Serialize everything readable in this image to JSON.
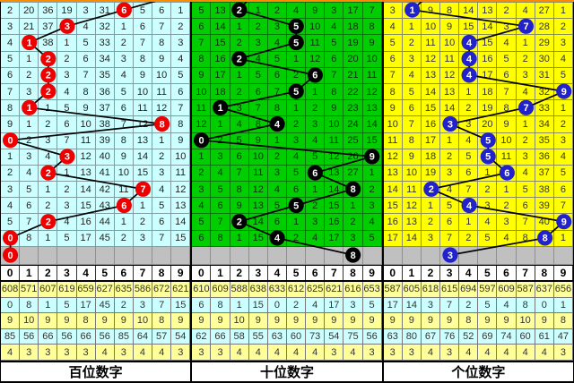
{
  "top_strip_color": "#FF8C00",
  "gray_row_bg": "#C0C0C0",
  "chart_data": {
    "type": "table",
    "panels": [
      {
        "title": "百位数字",
        "drawn_digit_trend": [
          6,
          3,
          1,
          2,
          2,
          2,
          1,
          8,
          0,
          3,
          2,
          7,
          6,
          2,
          0,
          0
        ]
      },
      {
        "title": "十位数字",
        "drawn_digit_trend": [
          2,
          5,
          5,
          2,
          6,
          5,
          1,
          4,
          0,
          9,
          6,
          8,
          5,
          2,
          4,
          8
        ]
      },
      {
        "title": "个位数字",
        "drawn_digit_trend": [
          1,
          7,
          4,
          4,
          4,
          9,
          7,
          3,
          5,
          5,
          6,
          2,
          4,
          9,
          8,
          3
        ]
      }
    ]
  },
  "panels": [
    {
      "id": "hundreds",
      "label": "百位数字",
      "colors": {
        "cell_bg": "#CCFFFF",
        "cell_border": "#7f9da3",
        "cell_text": "#222222",
        "circle_fill": "#EE0000",
        "circle_text": "#FFFFFF"
      },
      "grid": [
        [
          "2",
          "20",
          "36",
          "19",
          "3",
          "31",
          "6",
          "5",
          "6",
          "1"
        ],
        [
          "3",
          "21",
          "37",
          "3",
          "4",
          "32",
          "1",
          "6",
          "7",
          "2"
        ],
        [
          "4",
          "1",
          "38",
          "1",
          "5",
          "33",
          "2",
          "7",
          "8",
          "3"
        ],
        [
          "5",
          "1",
          "2",
          "2",
          "6",
          "34",
          "3",
          "8",
          "9",
          "4"
        ],
        [
          "6",
          "2",
          "2",
          "3",
          "7",
          "35",
          "4",
          "9",
          "10",
          "5"
        ],
        [
          "7",
          "3",
          "2",
          "4",
          "8",
          "36",
          "5",
          "10",
          "11",
          "6"
        ],
        [
          "8",
          "1",
          "1",
          "5",
          "9",
          "37",
          "6",
          "11",
          "12",
          "7"
        ],
        [
          "9",
          "1",
          "2",
          "6",
          "10",
          "38",
          "7",
          "12",
          "8",
          "8"
        ],
        [
          "0",
          "2",
          "3",
          "7",
          "11",
          "39",
          "8",
          "13",
          "1",
          "9"
        ],
        [
          "1",
          "3",
          "4",
          "3",
          "12",
          "40",
          "9",
          "14",
          "2",
          "10"
        ],
        [
          "2",
          "4",
          "2",
          "1",
          "13",
          "41",
          "10",
          "15",
          "3",
          "11"
        ],
        [
          "3",
          "5",
          "1",
          "2",
          "14",
          "42",
          "11",
          "7",
          "4",
          "12"
        ],
        [
          "4",
          "6",
          "2",
          "3",
          "15",
          "43",
          "6",
          "1",
          "5",
          "13"
        ],
        [
          "5",
          "7",
          "2",
          "4",
          "16",
          "44",
          "1",
          "2",
          "6",
          "14"
        ],
        [
          "0",
          "8",
          "1",
          "5",
          "17",
          "45",
          "2",
          "3",
          "7",
          "15"
        ]
      ],
      "circle_cols": [
        6,
        3,
        1,
        2,
        2,
        2,
        1,
        8,
        0,
        3,
        2,
        7,
        6,
        2,
        0
      ],
      "tail_circle_col": 0,
      "entry_col": 9.4,
      "stats_header": [
        "0",
        "1",
        "2",
        "3",
        "4",
        "5",
        "6",
        "7",
        "8",
        "9"
      ],
      "stats_rows": [
        {
          "bg": "#FFFF99",
          "values": [
            "608",
            "571",
            "607",
            "619",
            "659",
            "627",
            "635",
            "586",
            "672",
            "621"
          ]
        },
        {
          "bg": "#CCFFFF",
          "values": [
            "0",
            "8",
            "1",
            "5",
            "17",
            "45",
            "2",
            "3",
            "7",
            "15"
          ]
        },
        {
          "bg": "#FFFF99",
          "values": [
            "9",
            "10",
            "9",
            "9",
            "8",
            "9",
            "9",
            "10",
            "8",
            "9"
          ]
        },
        {
          "bg": "#CCFFFF",
          "values": [
            "85",
            "56",
            "66",
            "56",
            "66",
            "56",
            "85",
            "64",
            "57",
            "54"
          ]
        },
        {
          "bg": "#FFFF99",
          "values": [
            "4",
            "3",
            "3",
            "3",
            "3",
            "4",
            "3",
            "4",
            "4",
            "3"
          ]
        }
      ]
    },
    {
      "id": "tens",
      "label": "十位数字",
      "colors": {
        "cell_bg": "#00CE00",
        "cell_border": "#007700",
        "cell_text": "#003300",
        "circle_fill": "#000000",
        "circle_text": "#FFFFFF"
      },
      "grid": [
        [
          "5",
          "13",
          "2",
          "1",
          "2",
          "4",
          "9",
          "3",
          "17",
          "7"
        ],
        [
          "6",
          "14",
          "1",
          "2",
          "3",
          "5",
          "10",
          "4",
          "18",
          "8"
        ],
        [
          "7",
          "15",
          "2",
          "3",
          "4",
          "5",
          "11",
          "5",
          "19",
          "9"
        ],
        [
          "8",
          "16",
          "2",
          "4",
          "5",
          "1",
          "12",
          "6",
          "20",
          "10"
        ],
        [
          "9",
          "17",
          "1",
          "5",
          "6",
          "2",
          "6",
          "7",
          "21",
          "11"
        ],
        [
          "10",
          "18",
          "2",
          "6",
          "7",
          "5",
          "1",
          "8",
          "22",
          "12"
        ],
        [
          "11",
          "1",
          "3",
          "7",
          "8",
          "1",
          "2",
          "9",
          "23",
          "13"
        ],
        [
          "12",
          "1",
          "4",
          "8",
          "4",
          "2",
          "3",
          "10",
          "24",
          "14"
        ],
        [
          "0",
          "2",
          "5",
          "9",
          "1",
          "3",
          "4",
          "11",
          "25",
          "15"
        ],
        [
          "1",
          "3",
          "6",
          "10",
          "2",
          "4",
          "5",
          "12",
          "26",
          "9"
        ],
        [
          "2",
          "4",
          "7",
          "11",
          "3",
          "5",
          "6",
          "13",
          "27",
          "1"
        ],
        [
          "3",
          "5",
          "8",
          "12",
          "4",
          "6",
          "1",
          "14",
          "8",
          "2"
        ],
        [
          "4",
          "6",
          "9",
          "13",
          "5",
          "5",
          "2",
          "15",
          "1",
          "3"
        ],
        [
          "5",
          "7",
          "2",
          "14",
          "6",
          "1",
          "3",
          "16",
          "2",
          "4"
        ],
        [
          "6",
          "8",
          "1",
          "15",
          "4",
          "2",
          "4",
          "17",
          "3",
          "5"
        ]
      ],
      "circle_cols": [
        2,
        5,
        5,
        2,
        6,
        5,
        1,
        4,
        0,
        9,
        6,
        8,
        5,
        2,
        4
      ],
      "tail_circle_col": 8,
      "entry_col": 3.2,
      "stats_header": [
        "0",
        "1",
        "2",
        "3",
        "4",
        "5",
        "6",
        "7",
        "8",
        "9"
      ],
      "stats_rows": [
        {
          "bg": "#FFFF99",
          "values": [
            "610",
            "609",
            "588",
            "638",
            "633",
            "612",
            "625",
            "621",
            "616",
            "653"
          ]
        },
        {
          "bg": "#CCFFFF",
          "values": [
            "6",
            "8",
            "1",
            "15",
            "0",
            "2",
            "4",
            "17",
            "3",
            "5"
          ]
        },
        {
          "bg": "#FFFF99",
          "values": [
            "9",
            "9",
            "10",
            "9",
            "9",
            "9",
            "9",
            "9",
            "9",
            "9"
          ]
        },
        {
          "bg": "#CCFFFF",
          "values": [
            "62",
            "66",
            "58",
            "55",
            "63",
            "60",
            "73",
            "54",
            "75",
            "56"
          ]
        },
        {
          "bg": "#FFFF99",
          "values": [
            "3",
            "3",
            "4",
            "4",
            "4",
            "4",
            "4",
            "3",
            "4",
            "3"
          ]
        }
      ]
    },
    {
      "id": "units",
      "label": "个位数字",
      "colors": {
        "cell_bg": "#FFFF00",
        "cell_border": "#8a8a60",
        "cell_text": "#333333",
        "circle_fill": "#2222CC",
        "circle_text": "#FFFFFF"
      },
      "grid": [
        [
          "3",
          "1",
          "9",
          "8",
          "14",
          "13",
          "2",
          "4",
          "27",
          "1"
        ],
        [
          "4",
          "1",
          "10",
          "9",
          "15",
          "14",
          "3",
          "7",
          "28",
          "2"
        ],
        [
          "5",
          "2",
          "11",
          "10",
          "4",
          "15",
          "4",
          "1",
          "29",
          "3"
        ],
        [
          "6",
          "3",
          "12",
          "11",
          "4",
          "16",
          "5",
          "2",
          "30",
          "4"
        ],
        [
          "7",
          "4",
          "13",
          "12",
          "4",
          "17",
          "6",
          "3",
          "31",
          "5"
        ],
        [
          "8",
          "5",
          "14",
          "13",
          "1",
          "18",
          "7",
          "4",
          "32",
          "9"
        ],
        [
          "9",
          "6",
          "15",
          "14",
          "2",
          "19",
          "8",
          "7",
          "33",
          "1"
        ],
        [
          "10",
          "7",
          "16",
          "3",
          "3",
          "20",
          "9",
          "1",
          "34",
          "2"
        ],
        [
          "11",
          "8",
          "17",
          "1",
          "4",
          "5",
          "10",
          "2",
          "35",
          "3"
        ],
        [
          "12",
          "9",
          "18",
          "2",
          "5",
          "5",
          "11",
          "3",
          "36",
          "4"
        ],
        [
          "13",
          "10",
          "19",
          "3",
          "6",
          "1",
          "6",
          "4",
          "37",
          "5"
        ],
        [
          "14",
          "11",
          "2",
          "4",
          "7",
          "2",
          "1",
          "5",
          "38",
          "6"
        ],
        [
          "15",
          "12",
          "1",
          "5",
          "4",
          "3",
          "2",
          "6",
          "39",
          "7"
        ],
        [
          "16",
          "13",
          "2",
          "6",
          "1",
          "4",
          "3",
          "7",
          "40",
          "9"
        ],
        [
          "17",
          "14",
          "3",
          "7",
          "2",
          "5",
          "4",
          "8",
          "8",
          "1"
        ]
      ],
      "circle_cols": [
        1,
        7,
        4,
        4,
        4,
        9,
        7,
        3,
        5,
        5,
        6,
        2,
        4,
        9,
        8
      ],
      "tail_circle_col": 3,
      "entry_col": 2.4,
      "stats_header": [
        "0",
        "1",
        "2",
        "3",
        "4",
        "5",
        "6",
        "7",
        "8",
        "9"
      ],
      "stats_rows": [
        {
          "bg": "#FFFF99",
          "values": [
            "587",
            "605",
            "618",
            "615",
            "694",
            "597",
            "609",
            "587",
            "637",
            "656"
          ]
        },
        {
          "bg": "#CCFFFF",
          "values": [
            "17",
            "14",
            "3",
            "7",
            "2",
            "5",
            "4",
            "8",
            "0",
            "1"
          ]
        },
        {
          "bg": "#FFFF99",
          "values": [
            "9",
            "9",
            "9",
            "9",
            "8",
            "9",
            "9",
            "10",
            "9",
            "8"
          ]
        },
        {
          "bg": "#CCFFFF",
          "values": [
            "63",
            "80",
            "67",
            "76",
            "52",
            "69",
            "74",
            "60",
            "61",
            "47"
          ]
        },
        {
          "bg": "#FFFF99",
          "values": [
            "3",
            "3",
            "4",
            "3",
            "4",
            "4",
            "4",
            "4",
            "4",
            "3"
          ]
        }
      ]
    }
  ]
}
